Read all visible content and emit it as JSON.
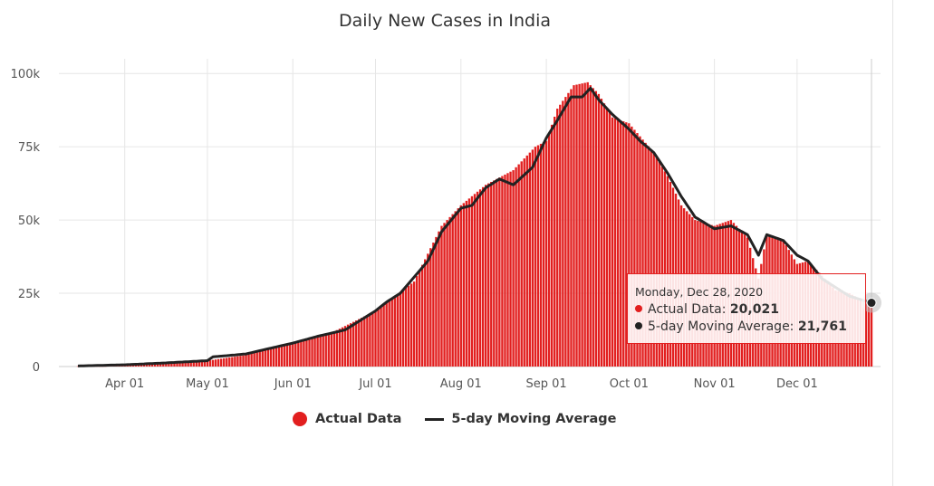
{
  "colors": {
    "actual": "#e21f1f",
    "average": "#222222",
    "grid": "#e6e6e6",
    "axis": "#cccccc"
  },
  "legend": {
    "actual_label": "Actual Data",
    "average_label": "5-day Moving Average"
  },
  "tooltip": {
    "date": "Monday, Dec 28, 2020",
    "actual_label": "Actual Data:",
    "actual_value": "20,021",
    "average_label": "5-day Moving Average:",
    "average_value": "21,761"
  },
  "chart_data": {
    "type": "bar",
    "title": "Daily New Cases in India",
    "xlabel": "",
    "ylabel": "",
    "ylim": [
      0,
      105000
    ],
    "x_range": [
      "2020-03-15",
      "2020-12-31"
    ],
    "yticks": [
      {
        "value": 0,
        "label": "0"
      },
      {
        "value": 25000,
        "label": "25k"
      },
      {
        "value": 50000,
        "label": "50k"
      },
      {
        "value": 75000,
        "label": "75k"
      },
      {
        "value": 100000,
        "label": "100k"
      }
    ],
    "xticks": [
      {
        "date": "2020-04-01",
        "label": "Apr 01"
      },
      {
        "date": "2020-05-01",
        "label": "May 01"
      },
      {
        "date": "2020-06-01",
        "label": "Jun 01"
      },
      {
        "date": "2020-07-01",
        "label": "Jul 01"
      },
      {
        "date": "2020-08-01",
        "label": "Aug 01"
      },
      {
        "date": "2020-09-01",
        "label": "Sep 01"
      },
      {
        "date": "2020-10-01",
        "label": "Oct 01"
      },
      {
        "date": "2020-11-01",
        "label": "Nov 01"
      },
      {
        "date": "2020-12-01",
        "label": "Dec 01"
      }
    ],
    "grid": true,
    "legend_position": "bottom-center",
    "series": [
      {
        "name": "Actual Data",
        "type": "bar",
        "note": "daily values, sampled at key dates; intermediate days interpolated",
        "points": [
          [
            "2020-03-15",
            100
          ],
          [
            "2020-03-25",
            100
          ],
          [
            "2020-04-01",
            400
          ],
          [
            "2020-04-15",
            1000
          ],
          [
            "2020-05-01",
            2000
          ],
          [
            "2020-05-15",
            3900
          ],
          [
            "2020-06-01",
            8000
          ],
          [
            "2020-06-15",
            11500
          ],
          [
            "2020-07-01",
            19000
          ],
          [
            "2020-07-15",
            29000
          ],
          [
            "2020-07-25",
            48000
          ],
          [
            "2020-08-01",
            55000
          ],
          [
            "2020-08-10",
            62000
          ],
          [
            "2020-08-20",
            67000
          ],
          [
            "2020-08-28",
            75000
          ],
          [
            "2020-09-01",
            77000
          ],
          [
            "2020-09-05",
            88000
          ],
          [
            "2020-09-11",
            96000
          ],
          [
            "2020-09-16",
            97000
          ],
          [
            "2020-09-20",
            93000
          ],
          [
            "2020-09-25",
            85000
          ],
          [
            "2020-10-01",
            83000
          ],
          [
            "2020-10-10",
            73000
          ],
          [
            "2020-10-15",
            65000
          ],
          [
            "2020-10-20",
            55000
          ],
          [
            "2020-10-25",
            50000
          ],
          [
            "2020-11-01",
            48000
          ],
          [
            "2020-11-07",
            50000
          ],
          [
            "2020-11-13",
            44000
          ],
          [
            "2020-11-17",
            30000
          ],
          [
            "2020-11-20",
            45000
          ],
          [
            "2020-11-26",
            43000
          ],
          [
            "2020-12-01",
            35000
          ],
          [
            "2020-12-05",
            36000
          ],
          [
            "2020-12-10",
            31000
          ],
          [
            "2020-12-15",
            26000
          ],
          [
            "2020-12-20",
            25000
          ],
          [
            "2020-12-24",
            23000
          ],
          [
            "2020-12-28",
            20021
          ]
        ]
      },
      {
        "name": "5-day Moving Average",
        "type": "line",
        "points": [
          [
            "2020-03-15",
            200
          ],
          [
            "2020-04-01",
            600
          ],
          [
            "2020-04-15",
            1200
          ],
          [
            "2020-05-01",
            2000
          ],
          [
            "2020-05-03",
            3300
          ],
          [
            "2020-05-15",
            4300
          ],
          [
            "2020-05-25",
            6500
          ],
          [
            "2020-06-01",
            8000
          ],
          [
            "2020-06-10",
            10300
          ],
          [
            "2020-06-20",
            12500
          ],
          [
            "2020-07-01",
            19000
          ],
          [
            "2020-07-05",
            22000
          ],
          [
            "2020-07-10",
            25000
          ],
          [
            "2020-07-20",
            36000
          ],
          [
            "2020-07-25",
            46000
          ],
          [
            "2020-08-01",
            54000
          ],
          [
            "2020-08-05",
            55000
          ],
          [
            "2020-08-10",
            61000
          ],
          [
            "2020-08-15",
            64000
          ],
          [
            "2020-08-20",
            62000
          ],
          [
            "2020-08-27",
            68000
          ],
          [
            "2020-09-01",
            78000
          ],
          [
            "2020-09-05",
            84000
          ],
          [
            "2020-09-10",
            92000
          ],
          [
            "2020-09-14",
            92000
          ],
          [
            "2020-09-17",
            95000
          ],
          [
            "2020-09-20",
            91000
          ],
          [
            "2020-09-25",
            86000
          ],
          [
            "2020-10-01",
            81000
          ],
          [
            "2020-10-05",
            77000
          ],
          [
            "2020-10-10",
            73000
          ],
          [
            "2020-10-15",
            66000
          ],
          [
            "2020-10-20",
            58000
          ],
          [
            "2020-10-25",
            51000
          ],
          [
            "2020-11-01",
            47000
          ],
          [
            "2020-11-07",
            48000
          ],
          [
            "2020-11-13",
            45000
          ],
          [
            "2020-11-17",
            38000
          ],
          [
            "2020-11-20",
            45000
          ],
          [
            "2020-11-26",
            43000
          ],
          [
            "2020-12-01",
            38000
          ],
          [
            "2020-12-05",
            36000
          ],
          [
            "2020-12-10",
            30000
          ],
          [
            "2020-12-15",
            27000
          ],
          [
            "2020-12-20",
            24000
          ],
          [
            "2020-12-28",
            21761
          ]
        ]
      }
    ],
    "highlighted_point": {
      "date": "2020-12-28",
      "actual": 20021,
      "average": 21761
    }
  }
}
